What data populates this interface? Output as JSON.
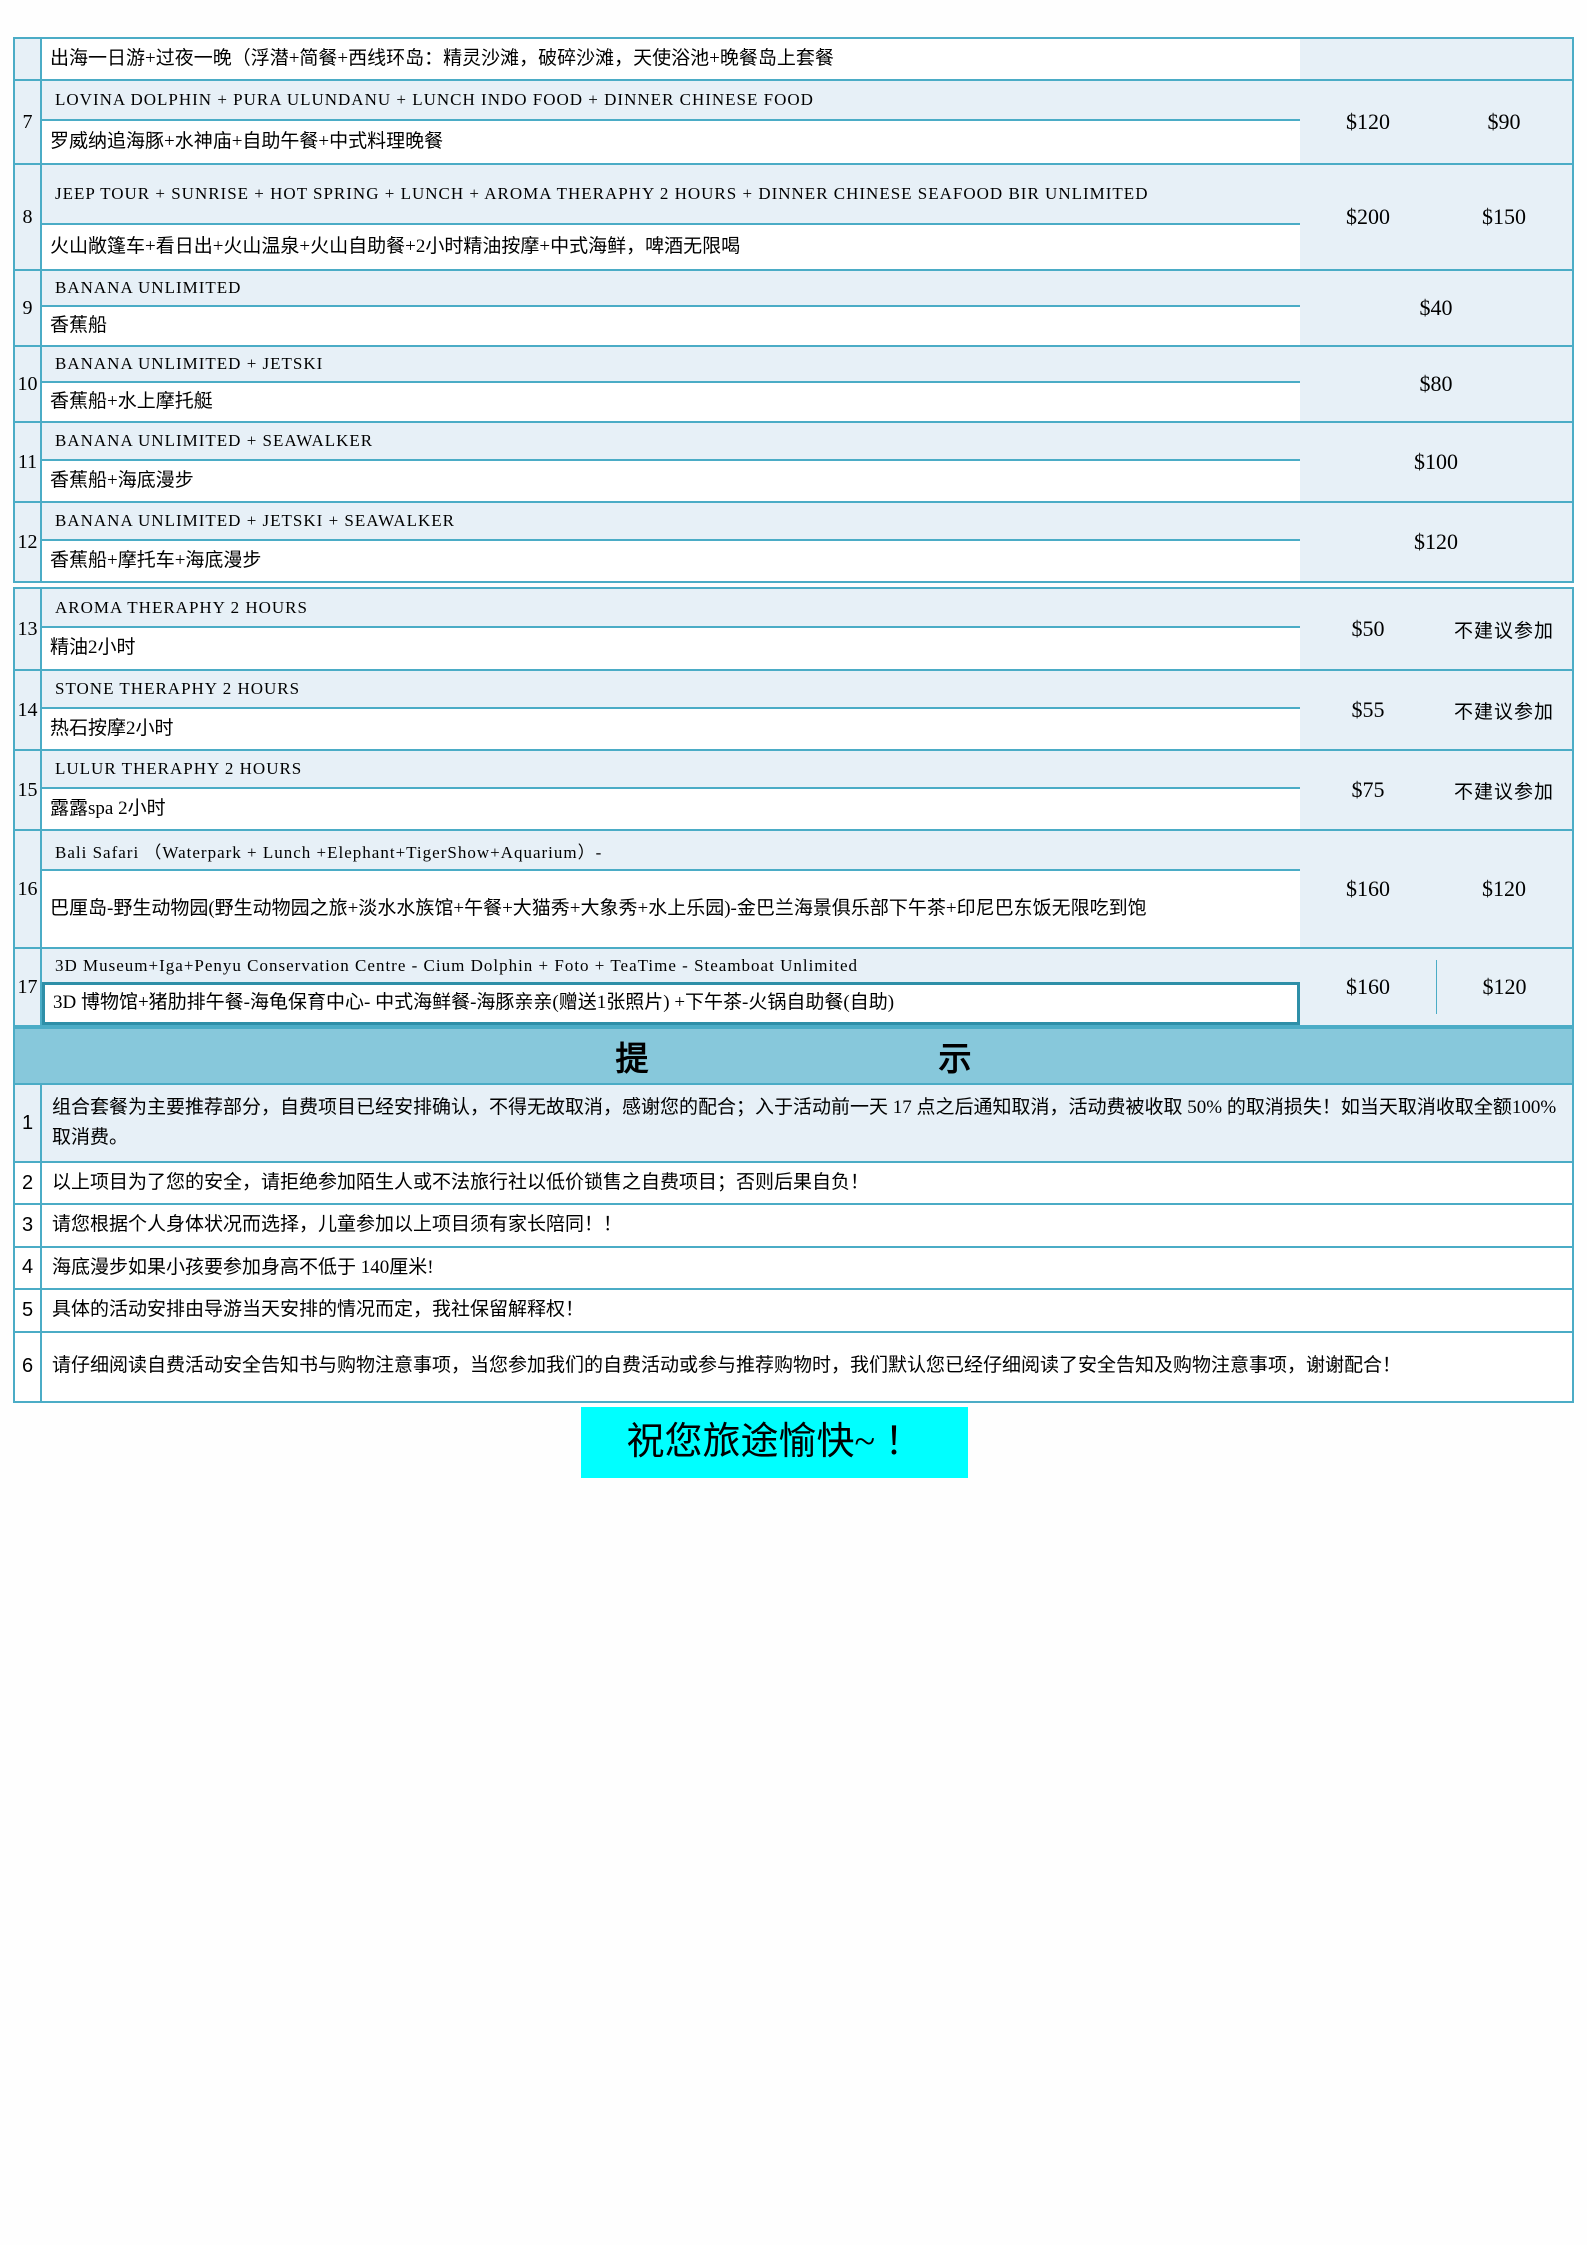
{
  "colors": {
    "border_teal": "#4BACC6",
    "cell_light_blue": "#E7F0F7",
    "tips_band": "#87C8DB",
    "selection_border": "#2E8FA8",
    "farewell_highlight": "#00FFFF"
  },
  "table": {
    "rows": [
      {
        "num": "",
        "zh": "出海一日游+过夜一晚（浮潜+简餐+西线环岛：精灵沙滩，破碎沙滩，天使浴池+晚餐岛上套餐",
        "price_a": "",
        "price_b": ""
      },
      {
        "num": "7",
        "en": "LOVINA DOLPHIN + PURA ULUNDANU + LUNCH INDO FOOD + DINNER CHINESE FOOD",
        "zh": "罗威纳追海豚+水神庙+自助午餐+中式料理晚餐",
        "price_a": "$120",
        "price_b": "$90"
      },
      {
        "num": "8",
        "en": "JEEP TOUR + SUNRISE + HOT SPRING + LUNCH + AROMA THERAPHY 2 HOURS + DINNER CHINESE SEAFOOD BIR UNLIMITED",
        "zh": "火山敞篷车+看日出+火山温泉+火山自助餐+2小时精油按摩+中式海鲜，啤酒无限喝",
        "price_a": "$200",
        "price_b": "$150"
      },
      {
        "num": "9",
        "en": "BANANA UNLIMITED",
        "zh": "香蕉船",
        "price_merged": "$40"
      },
      {
        "num": "10",
        "en": "BANANA UNLIMITED + JETSKI",
        "zh": "香蕉船+水上摩托艇",
        "price_merged": "$80"
      },
      {
        "num": "11",
        "en": "BANANA UNLIMITED + SEAWALKER",
        "zh": "香蕉船+海底漫步",
        "price_merged": "$100"
      },
      {
        "num": "12",
        "en": "BANANA UNLIMITED + JETSKI + SEAWALKER",
        "zh": "香蕉船+摩托车+海底漫步",
        "price_merged": "$120"
      },
      {
        "num": "13",
        "en": "AROMA THERAPHY 2 HOURS",
        "zh": "精油2小时",
        "price_a": "$50",
        "price_b": "不建议参加"
      },
      {
        "num": "14",
        "en": "STONE THERAPHY 2 HOURS",
        "zh": "热石按摩2小时",
        "price_a": "$55",
        "price_b": "不建议参加"
      },
      {
        "num": "15",
        "en": "LULUR THERAPHY 2 HOURS",
        "zh": "露露spa 2小时",
        "price_a": "$75",
        "price_b": "不建议参加"
      },
      {
        "num": "16",
        "en": "Bali Safari （Waterpark + Lunch +Elephant+TigerShow+Aquarium）-",
        "zh": "巴厘岛-野生动物园(野生动物园之旅+淡水水族馆+午餐+大猫秀+大象秀+水上乐园)-金巴兰海景俱乐部下午茶+印尼巴东饭无限吃到饱",
        "price_a": "$160",
        "price_b": "$120"
      },
      {
        "num": "17",
        "en": "3D Museum+Iga+Penyu Conservation Centre - Cium Dolphin + Foto + TeaTime - Steamboat Unlimited",
        "zh": "3D 博物馆+猪肋排午餐-海龟保育中心- 中式海鲜餐-海豚亲亲(赠送1张照片) +下午茶-火锅自助餐(自助)",
        "price_a": "$160",
        "price_b": "$120"
      }
    ]
  },
  "tips": {
    "title_left": "提",
    "title_right": "示",
    "notes": [
      {
        "num": "1",
        "text": "组合套餐为主要推荐部分，自费项目已经安排确认，不得无故取消，感谢您的配合；入于活动前一天 17 点之后通知取消，活动费被收取 50% 的取消损失！如当天取消收取全额100%取消费。"
      },
      {
        "num": "2",
        "text": "以上项目为了您的安全，请拒绝参加陌生人或不法旅行社以低价锁售之自费项目；否则后果自负！"
      },
      {
        "num": "3",
        "text": "请您根据个人身体状况而选择，儿童参加以上项目须有家长陪同！！"
      },
      {
        "num": "4",
        "text": "海底漫步如果小孩要参加身高不低于 140厘米!"
      },
      {
        "num": "5",
        "text": "具体的活动安排由导游当天安排的情况而定，我社保留解释权！"
      },
      {
        "num": "6",
        "text": "请仔细阅读自费活动安全告知书与购物注意事项，当您参加我们的自费活动或参与推荐购物时，我们默认您已经仔细阅读了安全告知及购物注意事项，谢谢配合！"
      }
    ]
  },
  "farewell": "祝您旅途愉快~ ！"
}
